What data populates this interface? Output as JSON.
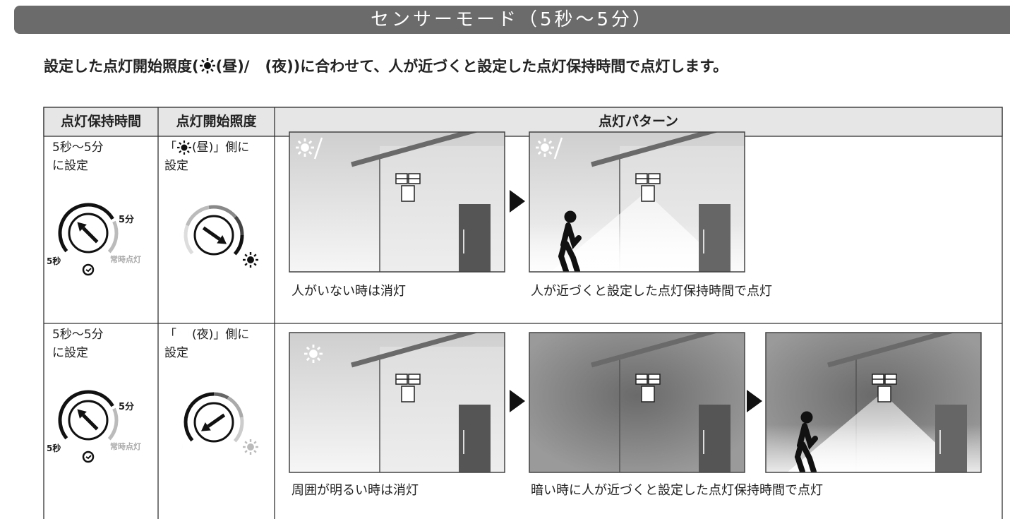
{
  "header": {
    "title": "センサーモード（5秒～5分）"
  },
  "intro": {
    "parts": [
      "設定した点灯開始照度(",
      "(昼)/",
      " (夜))に合わせて、人が近づくと設定した点灯保持時間で点灯します。"
    ]
  },
  "table": {
    "headers": [
      "点灯保持時間",
      "点灯開始照度",
      "点灯パターン"
    ],
    "rows": [
      {
        "time": [
          "5秒～5分",
          "に設定"
        ],
        "dial": {
          "max": "5分",
          "min": "5秒",
          "always": "常時点灯"
        },
        "illuminance": [
          "「",
          "(昼)」側に",
          "設定"
        ],
        "captions": [
          "人がいない時は消灯",
          "人が近づくと設定した点灯保持時間で点灯"
        ]
      },
      {
        "time": [
          "5秒～5分",
          "に設定"
        ],
        "dial": {
          "max": "5分",
          "min": "5秒",
          "always": "常時点灯"
        },
        "illuminance": [
          "「",
          "(夜)」側に",
          "設定"
        ],
        "captions": [
          "周囲が明るい時は消灯",
          "暗い時に人が近づくと設定した点灯保持時間で点灯"
        ]
      }
    ]
  }
}
